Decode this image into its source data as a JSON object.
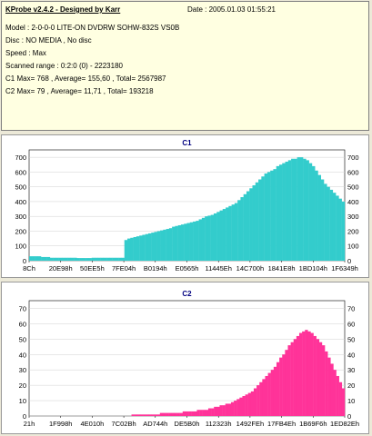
{
  "info": {
    "header": "KProbe v2.4.2 - Designed by Karr",
    "date": "Date : 2005.01.03 01:55:21",
    "model": "Model : 2-0-0-0 LITE-ON DVDRW SOHW-832S  VS0B",
    "disc": "Disc : NO MEDIA , No disc",
    "speed": "Speed : Max",
    "scanned_range": "Scanned range : 0:2:0 (0) - 2223180",
    "c1_summary": "C1 Max= 768 , Average= 155,60 , Total= 2567987",
    "c2_summary": "C2 Max= 79 , Average= 11,71 , Total= 193218"
  },
  "colors": {
    "c1": "#33cccc",
    "c2": "#ff3399",
    "background": "#ece9d8",
    "info_background": "#ffffe1"
  },
  "chart_data": [
    {
      "type": "bar",
      "title": "C1",
      "xlabel": "",
      "ylabel": "",
      "ylim": [
        0,
        750
      ],
      "yticks": [
        0,
        100,
        200,
        300,
        400,
        500,
        600,
        700
      ],
      "xticks": [
        "8Ch",
        "20E98h",
        "50EE5h",
        "7FE04h",
        "B0194h",
        "E0565h",
        "11445Eh",
        "14C700h",
        "1841E8h",
        "1BD104h",
        "1F6349h"
      ],
      "grid": true,
      "max": 768,
      "series": [
        {
          "name": "C1",
          "values": [
            30,
            30,
            30,
            30,
            25,
            25,
            25,
            20,
            20,
            20,
            20,
            20,
            20,
            20,
            20,
            20,
            18,
            18,
            18,
            18,
            18,
            20,
            20,
            20,
            20,
            20,
            20,
            20,
            20,
            20,
            20,
            20,
            140,
            150,
            155,
            160,
            165,
            170,
            175,
            180,
            185,
            190,
            195,
            200,
            205,
            210,
            215,
            220,
            230,
            235,
            240,
            245,
            250,
            255,
            260,
            265,
            270,
            280,
            290,
            300,
            305,
            310,
            320,
            330,
            340,
            350,
            360,
            370,
            380,
            390,
            410,
            430,
            450,
            470,
            490,
            510,
            530,
            550,
            570,
            590,
            600,
            610,
            620,
            640,
            650,
            660,
            670,
            680,
            690,
            690,
            700,
            700,
            690,
            680,
            660,
            640,
            610,
            580,
            550,
            520,
            500,
            480,
            460,
            440,
            420,
            400
          ]
        }
      ]
    },
    {
      "type": "bar",
      "title": "C2",
      "xlabel": "",
      "ylabel": "",
      "ylim": [
        0,
        75
      ],
      "yticks": [
        0,
        10,
        20,
        30,
        40,
        50,
        60,
        70
      ],
      "xticks": [
        "21h",
        "1F998h",
        "4E010h",
        "7C02Bh",
        "AD744h",
        "DE5B0h",
        "112323h",
        "1492FEh",
        "17FB4Eh",
        "1B69F6h",
        "1ED82Eh"
      ],
      "grid": true,
      "max": 79,
      "series": [
        {
          "name": "C2",
          "values": [
            0,
            0,
            0,
            0,
            0,
            0,
            0,
            0,
            0,
            0,
            0,
            0,
            0,
            0,
            0,
            0,
            0,
            0,
            0,
            0,
            0,
            0,
            0,
            0,
            0,
            0,
            0,
            0,
            0,
            0,
            0,
            0,
            0,
            0,
            0,
            0,
            1,
            1,
            1,
            1,
            1,
            1,
            1,
            1,
            1,
            1,
            2,
            2,
            2,
            2,
            2,
            2,
            2,
            2,
            3,
            3,
            3,
            3,
            3,
            4,
            4,
            4,
            4,
            5,
            5,
            6,
            6,
            7,
            7,
            8,
            8,
            9,
            10,
            11,
            12,
            13,
            14,
            15,
            16,
            18,
            20,
            22,
            24,
            26,
            28,
            30,
            32,
            35,
            38,
            40,
            43,
            46,
            48,
            50,
            52,
            54,
            55,
            56,
            55,
            54,
            52,
            50,
            48,
            46,
            42,
            38,
            34,
            30,
            26,
            22,
            18
          ]
        }
      ]
    }
  ]
}
